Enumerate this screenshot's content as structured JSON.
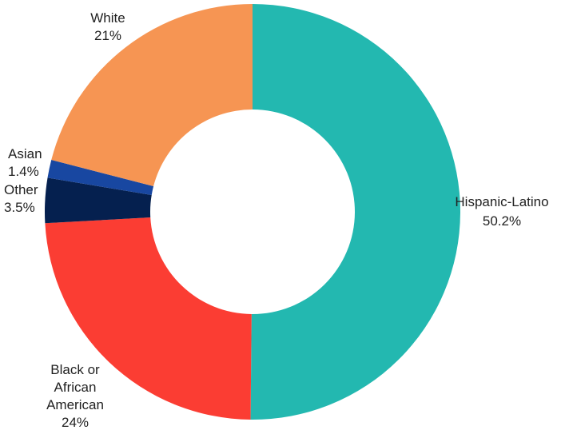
{
  "chart_data": {
    "type": "pie",
    "variant": "donut",
    "start_direction": "top",
    "direction": "clockwise",
    "unit": "%",
    "slices": [
      {
        "label": "Hispanic-Latino",
        "label_lines": [
          "Hispanic-Latino",
          "50.2%"
        ],
        "value": 50.2,
        "color": "#23b8b0"
      },
      {
        "label": "Black or African American",
        "label_lines": [
          "Black or",
          "African",
          "American",
          "24%"
        ],
        "value": 24,
        "color": "#fb3d33"
      },
      {
        "label": "Other",
        "label_lines": [
          "Other",
          "3.5%"
        ],
        "value": 3.5,
        "color": "#05204f"
      },
      {
        "label": "Asian",
        "label_lines": [
          "Asian",
          "1.4%"
        ],
        "value": 1.4,
        "color": "#1847a1"
      },
      {
        "label": "White",
        "label_lines": [
          "White",
          "21%"
        ],
        "value": 21,
        "color": "#f69553"
      }
    ]
  }
}
